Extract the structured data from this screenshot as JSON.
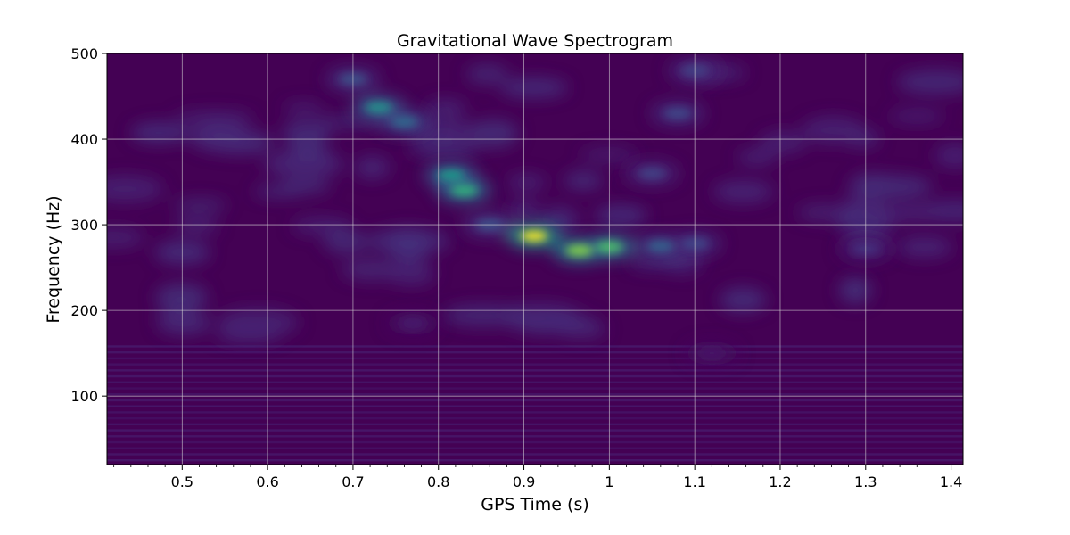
{
  "chart_data": {
    "type": "heatmap",
    "title": "Gravitational Wave Spectrogram",
    "xlabel": "GPS Time (s)",
    "ylabel": "Frequency (Hz)",
    "xlim": [
      0.412,
      1.414
    ],
    "ylim": [
      20,
      500
    ],
    "x_ticks": [
      0.5,
      0.6,
      0.7,
      0.8,
      0.9,
      1.0,
      1.1,
      1.2,
      1.3,
      1.4
    ],
    "x_tick_labels": [
      "0.5",
      "0.6",
      "0.7",
      "0.8",
      "0.9",
      "1",
      "1.1",
      "1.2",
      "1.3",
      "1.4"
    ],
    "y_ticks": [
      100,
      200,
      300,
      400,
      500
    ],
    "y_tick_labels": [
      "100",
      "200",
      "300",
      "400",
      "500"
    ],
    "grid": true,
    "colormap": "viridis",
    "colors": {
      "background": "#440154",
      "grid": "#d8d8d8"
    },
    "hotspots": [
      {
        "t": 0.912,
        "f": 287,
        "power": 1.0
      },
      {
        "t": 0.965,
        "f": 270,
        "power": 0.82
      },
      {
        "t": 1.0,
        "f": 274,
        "power": 0.72
      },
      {
        "t": 0.83,
        "f": 340,
        "power": 0.65
      },
      {
        "t": 0.815,
        "f": 358,
        "power": 0.55
      },
      {
        "t": 0.73,
        "f": 437,
        "power": 0.52
      },
      {
        "t": 0.76,
        "f": 420,
        "power": 0.35
      },
      {
        "t": 0.7,
        "f": 470,
        "power": 0.25
      },
      {
        "t": 1.06,
        "f": 275,
        "power": 0.32
      },
      {
        "t": 1.1,
        "f": 278,
        "power": 0.22
      },
      {
        "t": 1.05,
        "f": 360,
        "power": 0.2
      },
      {
        "t": 1.08,
        "f": 430,
        "power": 0.22
      },
      {
        "t": 1.1,
        "f": 480,
        "power": 0.2
      },
      {
        "t": 0.86,
        "f": 300,
        "power": 0.25
      },
      {
        "t": 1.3,
        "f": 272,
        "power": 0.15
      },
      {
        "t": 0.77,
        "f": 185,
        "power": 0.08
      },
      {
        "t": 1.12,
        "f": 150,
        "power": 0.06
      }
    ]
  }
}
